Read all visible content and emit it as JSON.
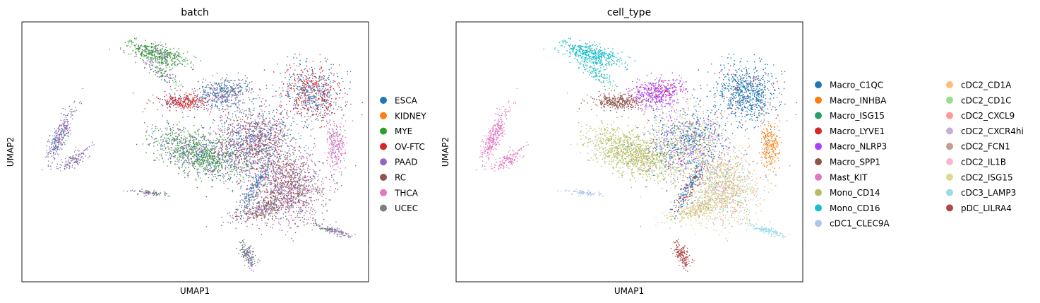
{
  "chart_data": [
    {
      "type": "scatter",
      "title": "batch",
      "xlabel": "UMAP1",
      "ylabel": "UMAP2",
      "xlim": [
        -10,
        17
      ],
      "ylim": [
        -8,
        12
      ],
      "grid": false,
      "legend_position": "right",
      "legend": [
        {
          "name": "ESCA",
          "color": "#1f77b4"
        },
        {
          "name": "KIDNEY",
          "color": "#ff7f0e"
        },
        {
          "name": "MYE",
          "color": "#2ca02c"
        },
        {
          "name": "OV-FTC",
          "color": "#d62728"
        },
        {
          "name": "PAAD",
          "color": "#9467bd"
        },
        {
          "name": "RC",
          "color": "#8c564b"
        },
        {
          "name": "THCA",
          "color": "#e377c2"
        },
        {
          "name": "UCEC",
          "color": "#7f7f7f"
        }
      ]
    },
    {
      "type": "scatter",
      "title": "cell_type",
      "xlabel": "UMAP1",
      "ylabel": "UMAP2",
      "xlim": [
        -10,
        17
      ],
      "ylim": [
        -8,
        12
      ],
      "grid": false,
      "legend_position": "right",
      "legend_columns": 2,
      "legend": [
        {
          "name": "Macro_C1QC",
          "color": "#1f77b4"
        },
        {
          "name": "Macro_INHBA",
          "color": "#ff7f0e"
        },
        {
          "name": "Macro_ISG15",
          "color": "#279e68"
        },
        {
          "name": "Macro_LYVE1",
          "color": "#d62728"
        },
        {
          "name": "Macro_NLRP3",
          "color": "#aa40fc"
        },
        {
          "name": "Macro_SPP1",
          "color": "#8c564b"
        },
        {
          "name": "Mast_KIT",
          "color": "#e377c2"
        },
        {
          "name": "Mono_CD14",
          "color": "#b5bd61"
        },
        {
          "name": "Mono_CD16",
          "color": "#17becf"
        },
        {
          "name": "cDC1_CLEC9A",
          "color": "#aec7e8"
        },
        {
          "name": "cDC2_CD1A",
          "color": "#ffbb78"
        },
        {
          "name": "cDC2_CD1C",
          "color": "#98df8a"
        },
        {
          "name": "cDC2_CXCL9",
          "color": "#ff9896"
        },
        {
          "name": "cDC2_CXCR4hi",
          "color": "#c5b0d5"
        },
        {
          "name": "cDC2_FCN1",
          "color": "#c49c94"
        },
        {
          "name": "cDC2_IL1B",
          "color": "#f7b6d2"
        },
        {
          "name": "cDC2_ISG15",
          "color": "#dbdb8d"
        },
        {
          "name": "cDC3_LAMP3",
          "color": "#9edae5"
        },
        {
          "name": "pDC_LILRA4",
          "color": "#ad494a"
        }
      ]
    }
  ]
}
